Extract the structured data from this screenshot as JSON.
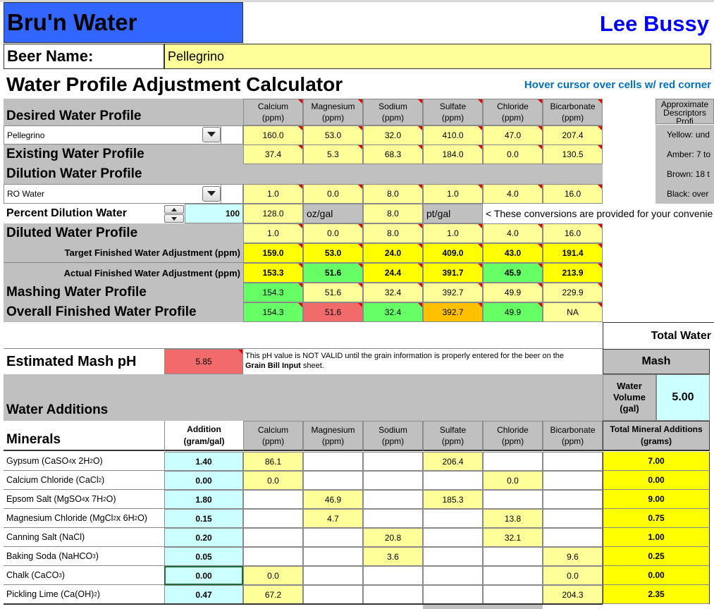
{
  "app": {
    "title": "Bru'n Water",
    "author": "Lee Bussy"
  },
  "beer": {
    "label": "Beer Name:",
    "value": "Pellegrino"
  },
  "calculator": {
    "title": "Water Profile Adjustment Calculator",
    "hint": "Hover cursor over cells w/ red corner"
  },
  "columns": [
    {
      "name": "Calcium",
      "unit": "(ppm)"
    },
    {
      "name": "Magnesium",
      "unit": "(ppm)"
    },
    {
      "name": "Sodium",
      "unit": "(ppm)"
    },
    {
      "name": "Sulfate",
      "unit": "(ppm)"
    },
    {
      "name": "Chloride",
      "unit": "(ppm)"
    },
    {
      "name": "Bicarbonate",
      "unit": "(ppm)"
    }
  ],
  "descriptors": {
    "header": "Approximate Descriptors Profi",
    "items": [
      "Yellow: und",
      "Amber: 7 to",
      "Brown: 18 t",
      "Black: over"
    ]
  },
  "desired": {
    "label": "Desired Water Profile",
    "select": "Pellegrino",
    "values": [
      "160.0",
      "53.0",
      "32.0",
      "410.0",
      "47.0",
      "207.4"
    ]
  },
  "existing": {
    "label": "Existing Water Profile",
    "values": [
      "37.4",
      "5.3",
      "68.3",
      "184.0",
      "0.0",
      "130.5"
    ]
  },
  "dilution": {
    "label": "Dilution Water Profile",
    "select": "RO Water",
    "values": [
      "1.0",
      "0.0",
      "8.0",
      "1.0",
      "4.0",
      "16.0"
    ]
  },
  "percent": {
    "label": "Percent Dilution Water",
    "value": "100",
    "conv1": "128.0",
    "conv1_unit": "oz/gal",
    "conv2": "8.0",
    "conv2_unit": "pt/gal",
    "note": "< These conversions are provided for your convenie"
  },
  "diluted": {
    "label": "Diluted Water Profile",
    "values": [
      "1.0",
      "0.0",
      "8.0",
      "1.0",
      "4.0",
      "16.0"
    ]
  },
  "target": {
    "label": "Target Finished Water Adjustment (ppm)",
    "values": [
      "159.0",
      "53.0",
      "24.0",
      "409.0",
      "43.0",
      "191.4"
    ]
  },
  "actual": {
    "label": "Actual Finished Water Adjustment (ppm)",
    "values": [
      "153.3",
      "51.6",
      "24.4",
      "391.7",
      "45.9",
      "213.9"
    ]
  },
  "mashing": {
    "label": "Mashing Water Profile",
    "values": [
      "154.3",
      "51.6",
      "32.4",
      "392.7",
      "49.9",
      "229.9"
    ]
  },
  "overall": {
    "label": "Overall Finished Water Profile",
    "values": [
      "154.3",
      "51.6",
      "32.4",
      "392.7",
      "49.9",
      "NA"
    ]
  },
  "total_water": "Total Water",
  "mash_ph": {
    "label": "Estimated Mash pH",
    "value": "5.85",
    "note_line1": "This pH value is NOT VALID until the grain information is properly entered for the beer on the",
    "note_bold": "Grain Bill Input",
    "note_tail": " sheet."
  },
  "mash": {
    "header": "Mash",
    "volume_label_1": "Water",
    "volume_label_2": "Volume",
    "volume_label_3": "(gal)",
    "volume_value": "5.00"
  },
  "water_additions": {
    "label": "Water Additions"
  },
  "minerals_header": {
    "label": "Minerals",
    "addition_1": "Addition",
    "addition_2": "(gram/gal)",
    "total_1": "Total Mineral Additions",
    "total_2": "(grams)"
  },
  "minerals": [
    {
      "name": "Gypsum (CaSO",
      "sub1": "4",
      "mid": " x 2H",
      "sub2": "2",
      "end": "O)",
      "addition": "1.40",
      "values": [
        "86.1",
        "",
        "",
        "206.4",
        "",
        ""
      ],
      "total": "7.00"
    },
    {
      "name": "Calcium Chloride (CaCl",
      "sub1": "2",
      "mid": "",
      "sub2": "",
      "end": ")",
      "addition": "0.00",
      "values": [
        "0.0",
        "",
        "",
        "",
        "0.0",
        ""
      ],
      "total": "0.00"
    },
    {
      "name": "Epsom Salt (MgSO",
      "sub1": "4",
      "mid": " x 7H",
      "sub2": "2",
      "end": "O)",
      "addition": "1.80",
      "values": [
        "",
        "46.9",
        "",
        "185.3",
        "",
        ""
      ],
      "total": "9.00"
    },
    {
      "name": "Magnesium Chloride (MgCl",
      "sub1": "2",
      "mid": " x 6H",
      "sub2": "2",
      "end": "O)",
      "addition": "0.15",
      "values": [
        "",
        "4.7",
        "",
        "",
        "13.8",
        ""
      ],
      "total": "0.75"
    },
    {
      "name": "Canning Salt (NaCl)",
      "sub1": "",
      "mid": "",
      "sub2": "",
      "end": "",
      "addition": "0.20",
      "values": [
        "",
        "",
        "20.8",
        "",
        "32.1",
        ""
      ],
      "total": "1.00"
    },
    {
      "name": "Baking Soda (NaHCO",
      "sub1": "3",
      "mid": "",
      "sub2": "",
      "end": ")",
      "addition": "0.05",
      "values": [
        "",
        "",
        "3.6",
        "",
        "",
        "9.6"
      ],
      "total": "0.25"
    },
    {
      "name": "Chalk (CaCO",
      "sub1": "3",
      "mid": "",
      "sub2": "",
      "end": ")",
      "addition": "0.00",
      "values": [
        "0.0",
        "",
        "",
        "",
        "",
        "0.0"
      ],
      "total": "0.00"
    },
    {
      "name": "Pickling Lime (Ca(OH)",
      "sub1": "2",
      "mid": "",
      "sub2": "",
      "end": ")",
      "addition": "0.47",
      "values": [
        "67.2",
        "",
        "",
        "",
        "",
        "204.3"
      ],
      "total": "2.35"
    }
  ],
  "colors": {
    "title_bg": "#3366ff",
    "author": "#0000ff",
    "hint": "#0070c0",
    "yellow": "#ffff99",
    "bright_yellow": "#ffff00",
    "green": "#66ff66",
    "red": "#f26b6b",
    "orange": "#ffc000",
    "gray": "#c0c0c0",
    "cyan": "#ccffff"
  }
}
